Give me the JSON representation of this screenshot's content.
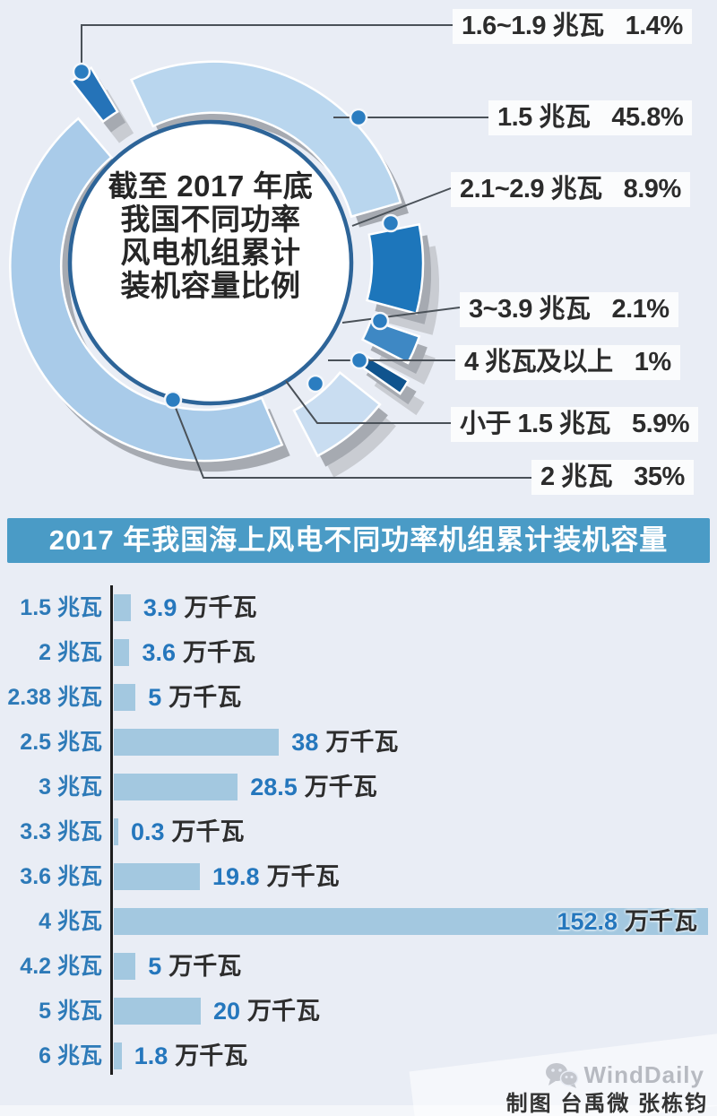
{
  "page": {
    "background": "#e9edf5"
  },
  "chart_data": [
    {
      "type": "pie",
      "style": "3d-exploded-donut",
      "title": "截至 2017 年底我国不同功率风电机组累计装机容量比例",
      "center_title_lines": [
        "截至 2017 年底",
        "我国不同功率",
        "风电机组累计",
        "装机容量比例"
      ],
      "labels": [
        "1.6~1.9 兆瓦",
        "1.5 兆瓦",
        "2.1~2.9 兆瓦",
        "3~3.9 兆瓦",
        "4 兆瓦及以上",
        "小于 1.5 兆瓦",
        "2 兆瓦"
      ],
      "values": [
        1.4,
        45.8,
        8.9,
        2.1,
        1,
        5.9,
        35
      ],
      "share_labels": [
        "1.4%",
        "45.8%",
        "8.9%",
        "2.1%",
        "1%",
        "5.9%",
        "35%"
      ],
      "colors": [
        "#2573b8",
        "#b9d6ee",
        "#1d76bb",
        "#3e88c4",
        "#10548e",
        "#c9ddf1",
        "#a9cbe9"
      ],
      "unit": "%",
      "legend_position": "right-callouts"
    },
    {
      "type": "bar",
      "orientation": "horizontal",
      "title": "2017 年我国海上风电不同功率机组累计装机容量",
      "categories": [
        "1.5 兆瓦",
        "2 兆瓦",
        "2.38 兆瓦",
        "2.5 兆瓦",
        "3 兆瓦",
        "3.3 兆瓦",
        "3.6 兆瓦",
        "4 兆瓦",
        "4.2 兆瓦",
        "5 兆瓦",
        "6 兆瓦"
      ],
      "values": [
        3.9,
        3.6,
        5,
        38,
        28.5,
        0.3,
        19.8,
        152.8,
        5,
        20,
        1.8
      ],
      "value_labels": [
        "3.9",
        "3.6",
        "5",
        "38",
        "28.5",
        "0.3",
        "19.8",
        "152.8",
        "5",
        "20",
        "1.8"
      ],
      "unit": "万千瓦",
      "bar_color": "#a3c8e0",
      "grid": false,
      "xlim": [
        0,
        160
      ]
    }
  ],
  "footer": {
    "watermark": "WindDaily",
    "credit": "制图  台禹微  张栋钧"
  },
  "theme": {
    "title_bar": "#4a9bc6",
    "category_color": "#2d7ab8",
    "number_color": "#2577bd",
    "unit_color": "#2d2d2d",
    "leader_color": "#4a5158",
    "dot_color": "#2b7dc0",
    "center_border": "#2d6498",
    "shadow_dark": "#a6aab1",
    "shadow_light": "#c9ccd2"
  }
}
